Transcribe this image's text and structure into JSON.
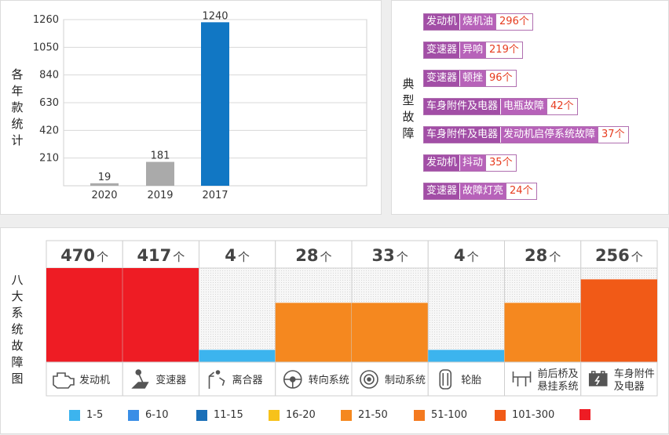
{
  "year_chart": {
    "axis_title": "各年款统计",
    "chart_data": {
      "type": "bar",
      "categories": [
        "2020",
        "2019",
        "2017"
      ],
      "values": [
        19,
        181,
        1240
      ],
      "ylim": [
        0,
        1260
      ],
      "yticks": [
        210,
        420,
        630,
        840,
        1050,
        1260
      ],
      "colors": [
        "#aaaaaa",
        "#aaaaaa",
        "#1177c4"
      ],
      "grid": true
    }
  },
  "faults": {
    "axis_title": "典型故障",
    "items": [
      {
        "system": "发动机",
        "fault": "烧机油",
        "count": "296个"
      },
      {
        "system": "变速器",
        "fault": "异响",
        "count": "219个"
      },
      {
        "system": "变速器",
        "fault": "顿挫",
        "count": "96个"
      },
      {
        "system": "车身附件及电器",
        "fault": "电瓶故障",
        "count": "42个"
      },
      {
        "system": "车身附件及电器",
        "fault": "发动机启停系统故障",
        "count": "37个"
      },
      {
        "system": "发动机",
        "fault": "抖动",
        "count": "35个"
      },
      {
        "system": "变速器",
        "fault": "故障灯亮",
        "count": "24个"
      }
    ]
  },
  "systems": {
    "axis_title": "八大系统故障图",
    "chart_data": {
      "type": "bar",
      "categories": [
        "发动机",
        "变速器",
        "离合器",
        "转向系统",
        "制动系统",
        "轮胎",
        "前后桥及悬挂系统",
        "车身附件及电器"
      ],
      "category_lines": [
        [
          "发动机"
        ],
        [
          "变速器"
        ],
        [
          "离合器"
        ],
        [
          "转向系统"
        ],
        [
          "制动系统"
        ],
        [
          "轮胎"
        ],
        [
          "前后桥及",
          "悬挂系统"
        ],
        [
          "车身附件",
          "及电器"
        ]
      ],
      "values": [
        470,
        417,
        4,
        28,
        33,
        4,
        28,
        256
      ],
      "value_labels": [
        "470",
        "417",
        "4",
        "28",
        "33",
        "4",
        "28",
        "256"
      ],
      "unit": "个",
      "level_fraction": [
        1.0,
        1.0,
        0.13,
        0.63,
        0.63,
        0.13,
        0.63,
        0.88
      ],
      "colors": [
        "#ee1c24",
        "#ee1c24",
        "#3cb4ee",
        "#f5881f",
        "#f5881f",
        "#3cb4ee",
        "#f5881f",
        "#f15a17"
      ],
      "icons": [
        "engine-icon",
        "gear-shift-icon",
        "clutch-icon",
        "steering-wheel-icon",
        "brake-disc-icon",
        "tire-icon",
        "axle-icon",
        "battery-icon"
      ]
    },
    "legend": [
      {
        "label": "1-5",
        "color": "#3cb4ee"
      },
      {
        "label": "6-10",
        "color": "#3a8ee6"
      },
      {
        "label": "11-15",
        "color": "#1a6fb8"
      },
      {
        "label": "16-20",
        "color": "#f7c21a"
      },
      {
        "label": "21-50",
        "color": "#f5881f"
      },
      {
        "label": "51-100",
        "color": "#f47a20"
      },
      {
        "label": "101-300",
        "color": "#f15a17"
      },
      {
        "label": "",
        "color": "#ee1c24"
      }
    ]
  }
}
